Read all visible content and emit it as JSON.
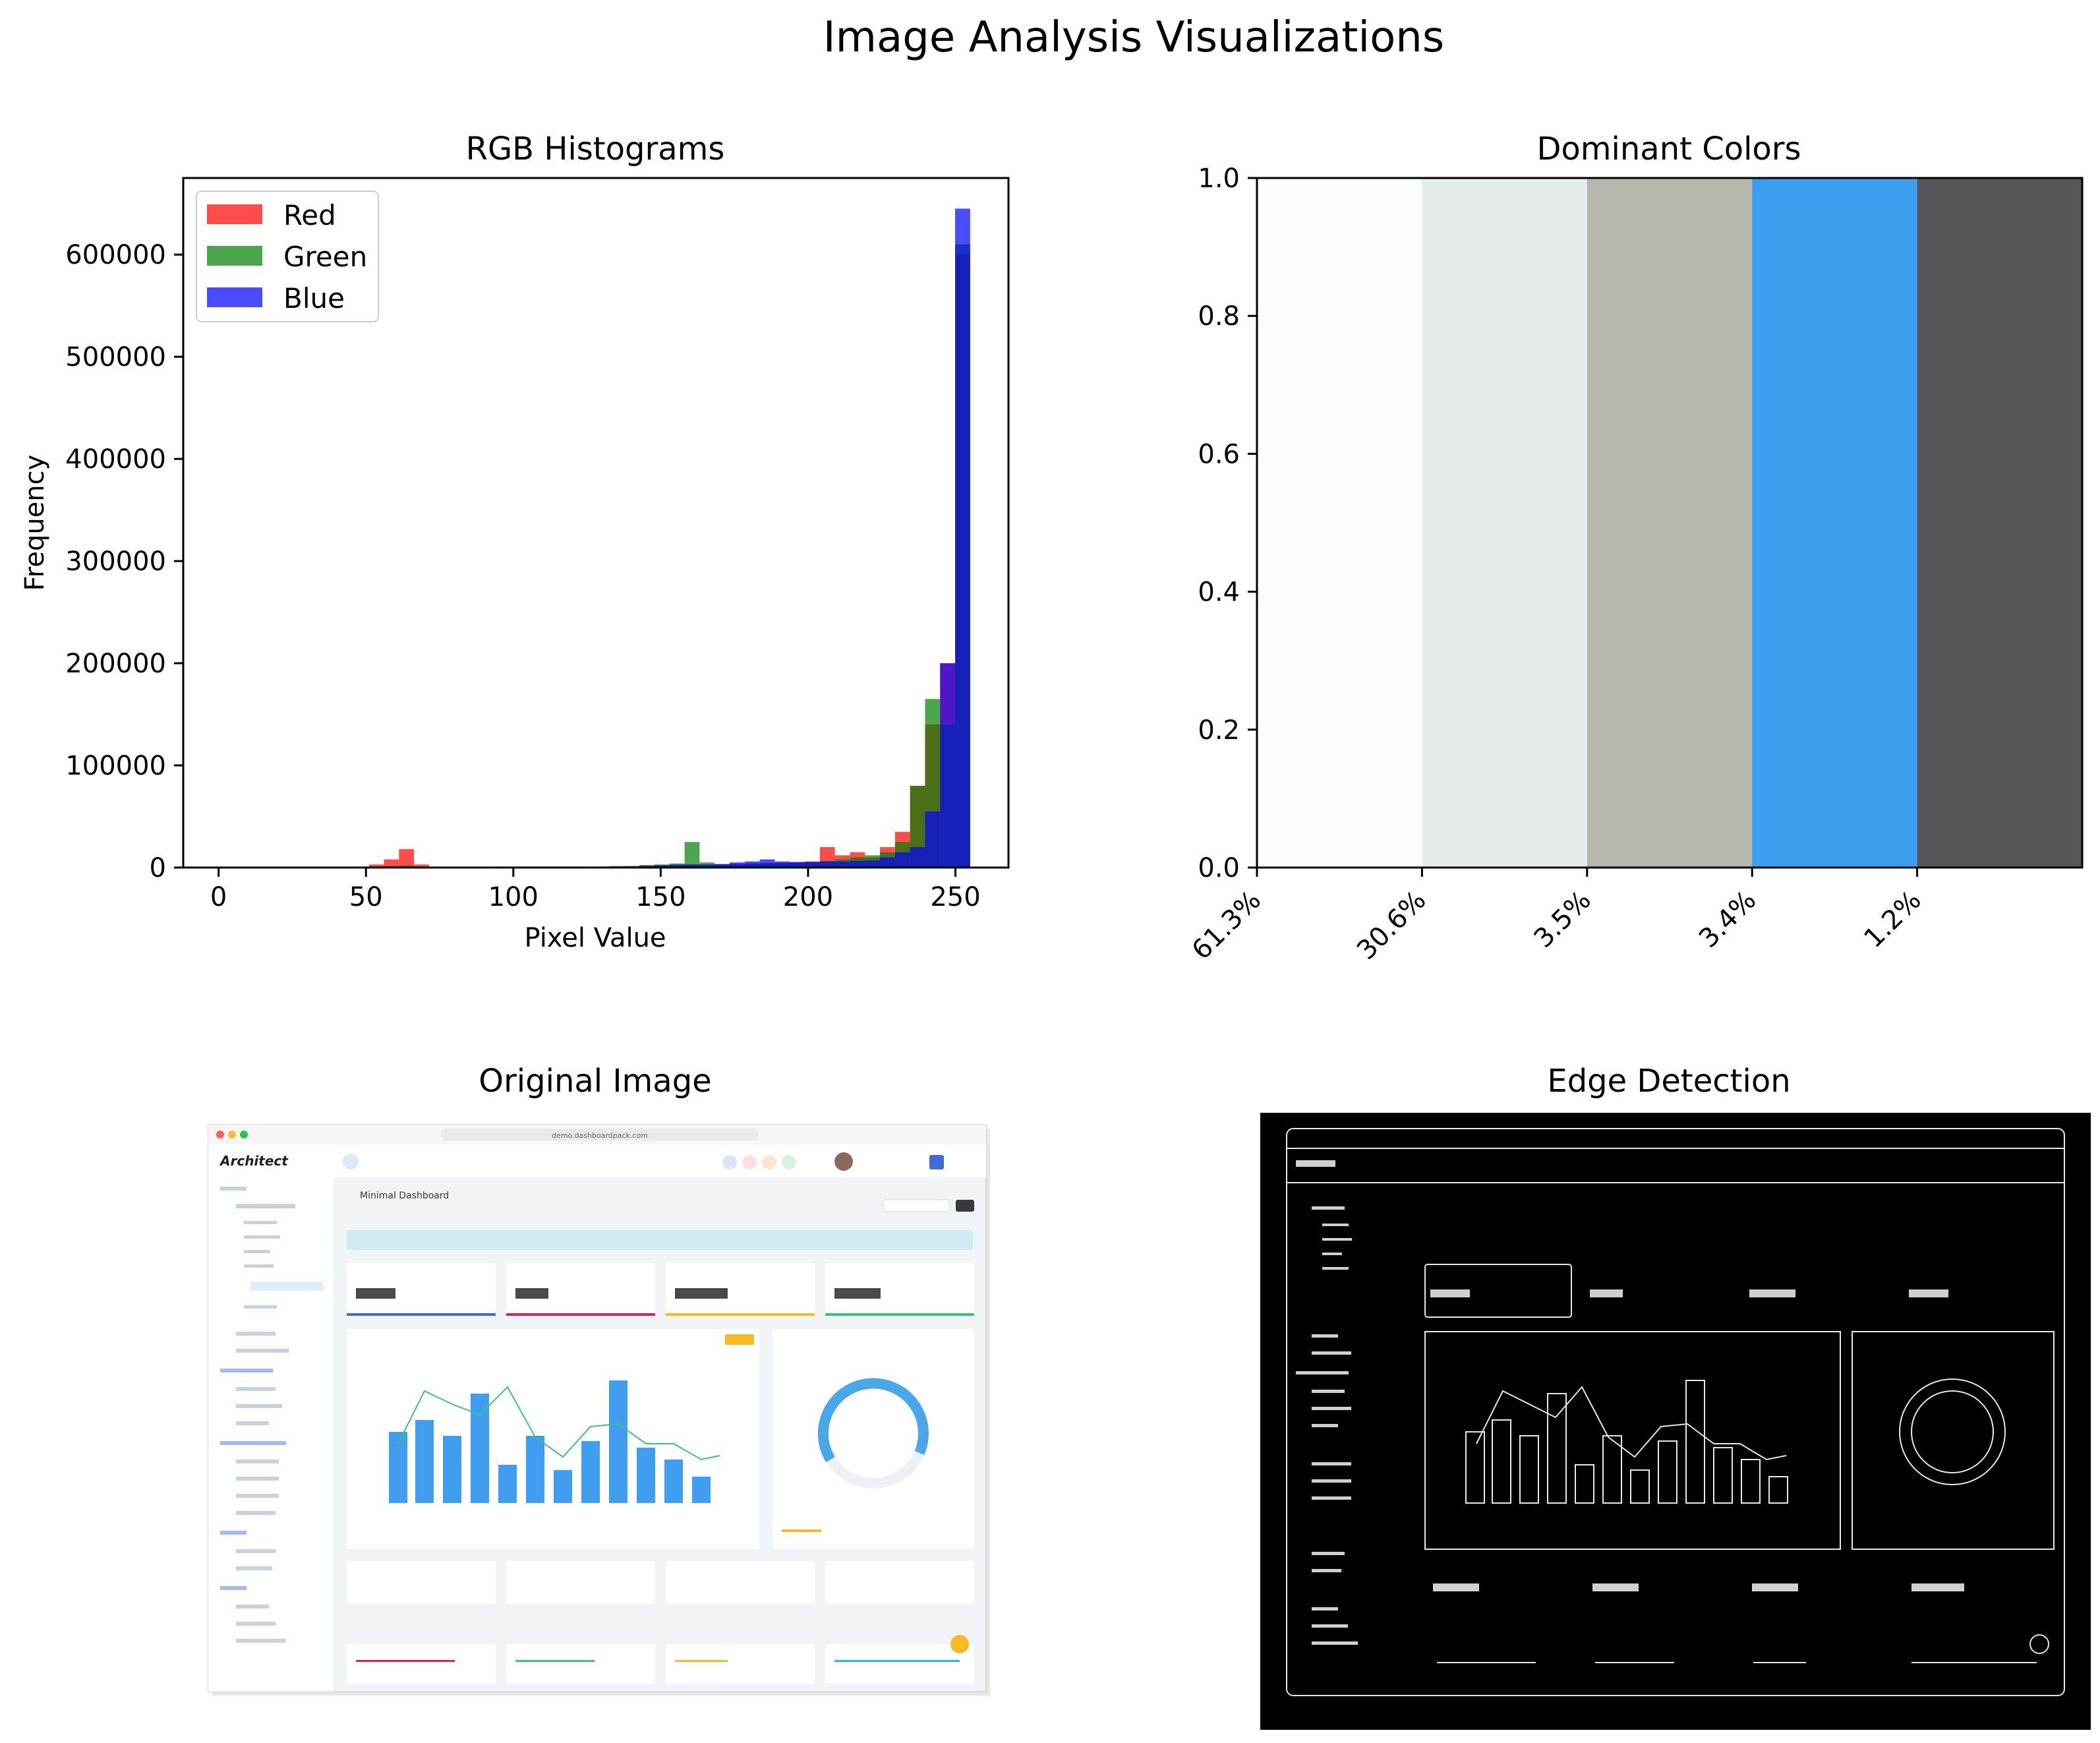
{
  "figure": {
    "title": "Image Analysis Visualizations"
  },
  "chart_data": [
    {
      "type": "bar",
      "title": "RGB Histograms",
      "xlabel": "Pixel Value",
      "ylabel": "Frequency",
      "xlim": [
        -12,
        268
      ],
      "ylim": [
        0,
        675000
      ],
      "x_ticks": [
        "0",
        "50",
        "100",
        "150",
        "200",
        "250"
      ],
      "y_ticks": [
        "0",
        "100000",
        "200000",
        "300000",
        "400000",
        "500000",
        "600000"
      ],
      "legend": {
        "position": "top-left",
        "entries": [
          "Red",
          "Green",
          "Blue"
        ]
      },
      "bin_width": 5.1,
      "bin_starts": [
        0,
        5.1,
        10.2,
        15.3,
        20.4,
        25.5,
        30.6,
        35.7,
        40.8,
        45.9,
        51,
        56.1,
        61.2,
        66.3,
        71.4,
        76.5,
        81.6,
        86.7,
        91.8,
        96.9,
        102,
        107.1,
        112.2,
        117.3,
        122.4,
        127.5,
        132.6,
        137.7,
        142.8,
        147.9,
        153,
        158.1,
        163.2,
        168.3,
        173.4,
        178.5,
        183.6,
        188.7,
        193.8,
        198.9,
        204,
        209.1,
        214.2,
        219.3,
        224.4,
        229.5,
        234.6,
        239.7,
        244.8,
        249.9
      ],
      "series": [
        {
          "name": "Red",
          "color": "#ff0000",
          "values": [
            0,
            0,
            0,
            0,
            0,
            0,
            0,
            0,
            500,
            1000,
            3000,
            8000,
            18000,
            3000,
            1000,
            500,
            500,
            500,
            1000,
            1000,
            1000,
            1000,
            1000,
            1000,
            1000,
            1000,
            1000,
            1500,
            2000,
            2500,
            3000,
            3000,
            3000,
            3000,
            3500,
            4000,
            4000,
            4500,
            5000,
            6000,
            20000,
            12000,
            15000,
            10000,
            20000,
            35000,
            80000,
            140000,
            200000,
            600000
          ]
        },
        {
          "name": "Green",
          "color": "#008000",
          "values": [
            0,
            0,
            0,
            0,
            0,
            0,
            0,
            0,
            200,
            500,
            1000,
            1500,
            2000,
            1000,
            500,
            300,
            300,
            300,
            500,
            500,
            500,
            500,
            500,
            500,
            500,
            1000,
            1500,
            1500,
            2500,
            3000,
            4000,
            25000,
            5000,
            3000,
            3500,
            4000,
            4500,
            4500,
            5000,
            5500,
            6500,
            8000,
            10000,
            12000,
            15000,
            25000,
            80000,
            165000,
            140000,
            610000
          ]
        },
        {
          "name": "Blue",
          "color": "#0000ff",
          "values": [
            0,
            0,
            0,
            0,
            0,
            0,
            0,
            0,
            100,
            300,
            500,
            800,
            1000,
            800,
            500,
            300,
            300,
            300,
            500,
            500,
            500,
            500,
            500,
            500,
            500,
            500,
            1000,
            1000,
            1500,
            2000,
            2500,
            3000,
            3000,
            3500,
            5000,
            6000,
            8000,
            6000,
            5500,
            5500,
            6000,
            6000,
            6500,
            7000,
            10000,
            15000,
            20000,
            55000,
            200000,
            645000
          ]
        }
      ]
    },
    {
      "type": "bar",
      "title": "Dominant Colors",
      "ylim": [
        0,
        1
      ],
      "y_ticks": [
        "0.0",
        "0.2",
        "0.4",
        "0.6",
        "0.8",
        "1.0"
      ],
      "categories": [
        "61.3%",
        "30.6%",
        "3.5%",
        "3.4%",
        "1.2%"
      ],
      "values": [
        61.3,
        30.6,
        3.5,
        3.4,
        1.2
      ],
      "colors": [
        "#fbfcfc",
        "#e6eced",
        "#b6b8ae",
        "#3b9eee",
        "#57555a"
      ]
    }
  ],
  "images": [
    {
      "title": "Original Image",
      "url": "demo.dashboardpack.com",
      "page_title": "Minimal Dashboard"
    },
    {
      "title": "Edge Detection"
    }
  ]
}
